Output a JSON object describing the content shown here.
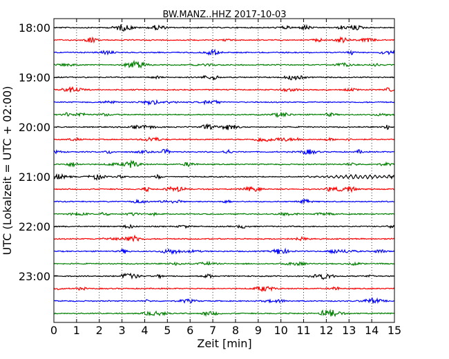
{
  "chart_data": {
    "type": "line",
    "title": "BW.MANZ..HHZ 2017-10-03",
    "xlabel": "Zeit  [min]",
    "ylabel": "UTC (Lokalzeit = UTC + 02:00)",
    "xlim": [
      0,
      15
    ],
    "x_ticks": [
      "0",
      "1",
      "2",
      "3",
      "4",
      "5",
      "6",
      "7",
      "8",
      "9",
      "10",
      "11",
      "12",
      "13",
      "14",
      "15"
    ],
    "y_ticks": [
      "18:00",
      "19:00",
      "20:00",
      "21:00",
      "22:00",
      "23:00"
    ],
    "grid": "vertical-dotted",
    "trace_colors": [
      "#000000",
      "#ff0000",
      "#0000ff",
      "#008000"
    ],
    "trace_start_times": [
      "18:00",
      "18:15",
      "18:30",
      "18:45",
      "19:00",
      "19:15",
      "19:30",
      "19:45",
      "20:00",
      "20:15",
      "20:30",
      "20:45",
      "21:00",
      "21:15",
      "21:30",
      "21:45",
      "22:00",
      "22:15",
      "22:30",
      "22:45",
      "23:00",
      "23:15",
      "23:30",
      "23:45"
    ],
    "trace_minutes_per_line": 15
  }
}
